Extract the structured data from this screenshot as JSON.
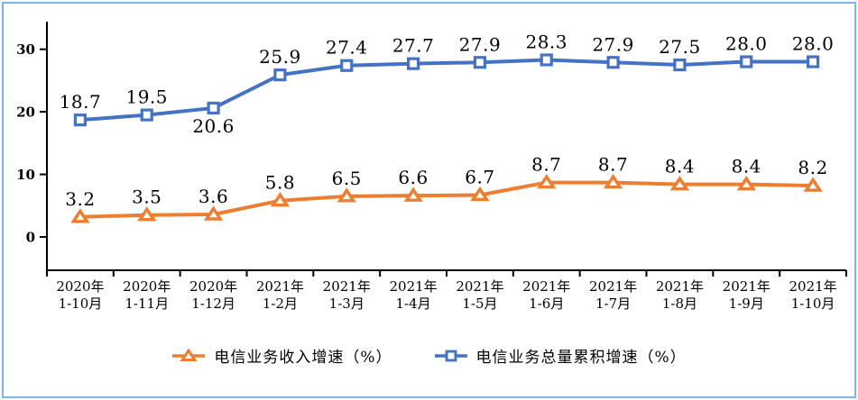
{
  "frame": {
    "border_color": "#7CB5EA",
    "background": "#FFFFFF",
    "axis_color": "#000000",
    "text_color": "#000000"
  },
  "chart_data": {
    "type": "line",
    "title": "",
    "xlabel": "",
    "ylabel": "",
    "grid": false,
    "legend_position": "bottom",
    "y_ticks": [
      0,
      10,
      20,
      30
    ],
    "ylim": [
      -5.3,
      34.4
    ],
    "categories": [
      {
        "top": "2020年",
        "bottom": "1-10月"
      },
      {
        "top": "2020年",
        "bottom": "1-11月"
      },
      {
        "top": "2020年",
        "bottom": "1-12月"
      },
      {
        "top": "2021年",
        "bottom": "1-2月"
      },
      {
        "top": "2021年",
        "bottom": "1-3月"
      },
      {
        "top": "2021年",
        "bottom": "1-4月"
      },
      {
        "top": "2021年",
        "bottom": "1-5月"
      },
      {
        "top": "2021年",
        "bottom": "1-6月"
      },
      {
        "top": "2021年",
        "bottom": "1-7月"
      },
      {
        "top": "2021年",
        "bottom": "1-8月"
      },
      {
        "top": "2021年",
        "bottom": "1-9月"
      },
      {
        "top": "2021年",
        "bottom": "1-10月"
      }
    ],
    "series": [
      {
        "name": "电信业务收入增速（%）",
        "marker": "triangle",
        "color": "#ED7D31",
        "values": [
          3.2,
          3.5,
          3.6,
          5.8,
          6.5,
          6.6,
          6.7,
          8.7,
          8.7,
          8.4,
          8.4,
          8.2
        ],
        "label_below_indices": []
      },
      {
        "name": "电信业务总量累积增速（%）",
        "marker": "square",
        "color": "#4472C4",
        "values": [
          18.7,
          19.5,
          20.6,
          25.9,
          27.4,
          27.7,
          27.9,
          28.3,
          27.9,
          27.5,
          28.0,
          28.0
        ],
        "label_below_indices": [
          2
        ]
      }
    ]
  }
}
